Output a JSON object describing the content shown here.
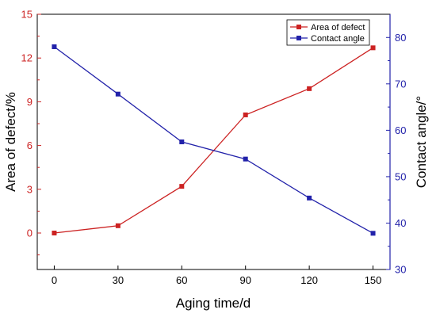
{
  "chart_data": {
    "type": "line",
    "title": "",
    "x": [
      0,
      30,
      60,
      90,
      120,
      150
    ],
    "xticks": [
      "0",
      "30",
      "60",
      "90",
      "120",
      "150"
    ],
    "xlim": [
      -8,
      158
    ],
    "xlabel": "Aging time/d",
    "ylabel_left": "Area of defect/%",
    "ylabel_right": "Contact angle/°",
    "ylim_left": [
      -2.5,
      15
    ],
    "ylim_right": [
      30,
      85
    ],
    "yticks_left": [
      "0",
      "3",
      "6",
      "9",
      "12",
      "15"
    ],
    "yticks_right": [
      "30",
      "40",
      "50",
      "60",
      "70",
      "80"
    ],
    "grid": false,
    "legend_position": "top-right",
    "series": [
      {
        "name": "Area of defect",
        "axis": "left",
        "color": "#cc2222",
        "values": [
          0.0,
          0.5,
          3.2,
          8.1,
          9.9,
          12.7
        ]
      },
      {
        "name": "Contact angle",
        "axis": "right",
        "color": "#2222aa",
        "values": [
          78.0,
          67.8,
          57.5,
          53.8,
          45.4,
          37.8
        ]
      }
    ]
  }
}
